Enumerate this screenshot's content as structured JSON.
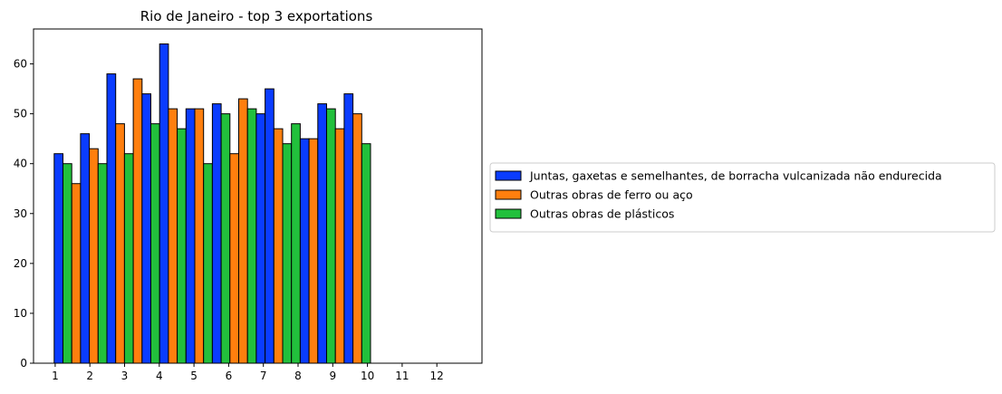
{
  "chart_data": {
    "type": "bar",
    "title": "Rio de Janeiro - top 3 exportations",
    "xlabel": "",
    "ylabel": "",
    "categories": [
      "1",
      "2",
      "3",
      "4",
      "5",
      "6",
      "7",
      "8",
      "9",
      "10",
      "11",
      "12"
    ],
    "ylim": [
      0,
      67
    ],
    "yticks": [
      0,
      10,
      20,
      30,
      40,
      50,
      60
    ],
    "grid": false,
    "legend_position": "right",
    "series": [
      {
        "name": "Juntas, gaxetas e semelhantes, de borracha vulcanizada não endurecida",
        "color": "#0a3cff",
        "values": [
          42,
          46,
          58,
          54,
          64,
          51,
          52,
          50,
          55,
          45,
          52,
          54
        ]
      },
      {
        "name": "Outras obras de ferro ou aço",
        "color": "#ff7f0e",
        "values": [
          36,
          43,
          48,
          57,
          51,
          51,
          42,
          53,
          47,
          45,
          47,
          50
        ]
      },
      {
        "name": "Outras obras de plásticos",
        "color": "#22c03c",
        "values": [
          40,
          40,
          42,
          48,
          47,
          40,
          50,
          51,
          44,
          48,
          51,
          44
        ]
      }
    ],
    "bars_in_order": [
      {
        "s": 0,
        "v": 42
      },
      {
        "s": 2,
        "v": 40
      },
      {
        "s": 1,
        "v": 36
      },
      {
        "s": 0,
        "v": 46
      },
      {
        "s": 1,
        "v": 43
      },
      {
        "s": 2,
        "v": 40
      },
      {
        "s": 0,
        "v": 58
      },
      {
        "s": 1,
        "v": 48
      },
      {
        "s": 2,
        "v": 42
      },
      {
        "s": 1,
        "v": 57
      },
      {
        "s": 0,
        "v": 54
      },
      {
        "s": 2,
        "v": 48
      },
      {
        "s": 0,
        "v": 64
      },
      {
        "s": 1,
        "v": 51
      },
      {
        "s": 2,
        "v": 47
      },
      {
        "s": 0,
        "v": 51
      },
      {
        "s": 1,
        "v": 51
      },
      {
        "s": 2,
        "v": 40
      },
      {
        "s": 0,
        "v": 52
      },
      {
        "s": 2,
        "v": 50
      },
      {
        "s": 1,
        "v": 42
      },
      {
        "s": 1,
        "v": 53
      },
      {
        "s": 2,
        "v": 51
      },
      {
        "s": 0,
        "v": 50
      },
      {
        "s": 0,
        "v": 55
      },
      {
        "s": 1,
        "v": 47
      },
      {
        "s": 2,
        "v": 44
      },
      {
        "s": 2,
        "v": 48
      },
      {
        "s": 0,
        "v": 45
      },
      {
        "s": 1,
        "v": 45
      },
      {
        "s": 0,
        "v": 52
      },
      {
        "s": 2,
        "v": 51
      },
      {
        "s": 1,
        "v": 47
      },
      {
        "s": 0,
        "v": 54
      },
      {
        "s": 1,
        "v": 50
      },
      {
        "s": 2,
        "v": 44
      }
    ]
  }
}
